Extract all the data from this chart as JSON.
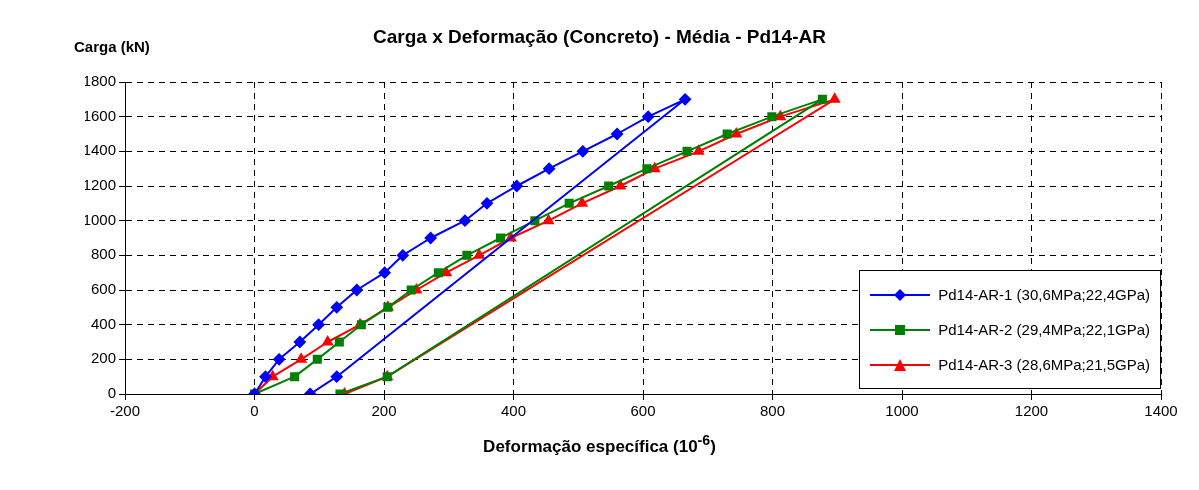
{
  "chart_data": {
    "type": "line",
    "title": "Carga x Deformação (Concreto) - Média  -  Pd14-AR",
    "xlabel": "Deformação específica (10$^{-6}$)",
    "ylabel": "Carga (kN)",
    "xlim": [
      -200,
      1400
    ],
    "xticks": [
      -200,
      0,
      200,
      400,
      600,
      800,
      1000,
      1200,
      1400
    ],
    "ylim": [
      0,
      1800
    ],
    "yticks": [
      0,
      200,
      400,
      600,
      800,
      1000,
      1200,
      1400,
      1600,
      1800
    ],
    "grid": true,
    "line_style": "solid",
    "legend": "bottom right",
    "series": [
      {
        "name": "Pd14-AR-1  (30,6MPa;22,4GPa)",
        "color": "#0000ff",
        "marker": "diamond",
        "x": [
          0,
          17,
          38,
          70,
          99,
          127,
          158,
          201,
          229,
          272,
          325,
          359,
          405,
          455,
          507,
          560,
          608,
          665,
          127,
          86
        ],
        "values": [
          0,
          100,
          200,
          300,
          400,
          500,
          600,
          700,
          800,
          900,
          1000,
          1100,
          1200,
          1300,
          1400,
          1500,
          1600,
          1700,
          100,
          0
        ]
      },
      {
        "name": "Pd14-AR-2  (29,4MPa;22,1GPa)",
        "color": "#008000",
        "marker": "square",
        "x": [
          0,
          62,
          97,
          131,
          165,
          206,
          242,
          284,
          328,
          380,
          433,
          486,
          547,
          606,
          668,
          730,
          799,
          877,
          205,
          132
        ],
        "values": [
          0,
          100,
          200,
          300,
          400,
          500,
          600,
          700,
          800,
          900,
          1000,
          1100,
          1200,
          1300,
          1400,
          1500,
          1600,
          1700,
          100,
          0
        ]
      },
      {
        "name": "Pd14-AR-3  (28,6MPa;21,5GPa)",
        "color": "#ff0000",
        "marker": "triangle",
        "x": [
          0,
          28,
          72,
          113,
          163,
          206,
          250,
          296,
          347,
          396,
          454,
          506,
          565,
          618,
          686,
          744,
          812,
          896,
          205,
          139
        ],
        "values": [
          0,
          100,
          200,
          300,
          400,
          500,
          600,
          700,
          800,
          900,
          1000,
          1100,
          1200,
          1300,
          1400,
          1500,
          1600,
          1700,
          100,
          0
        ]
      }
    ]
  }
}
